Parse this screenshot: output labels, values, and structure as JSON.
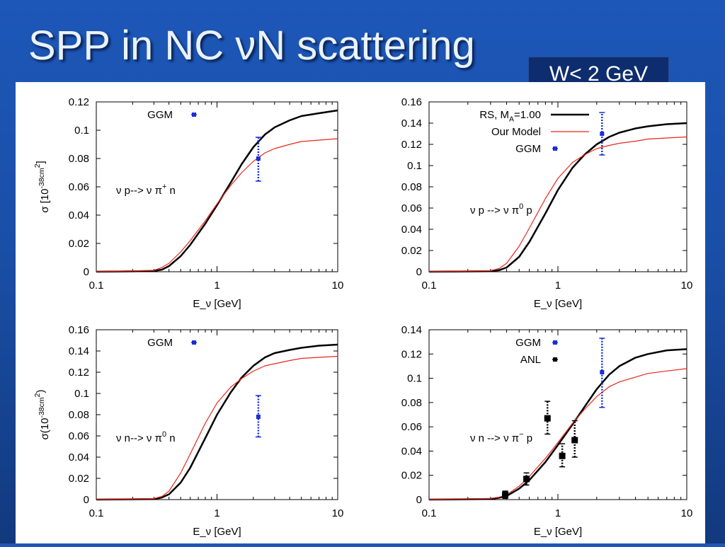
{
  "slide": {
    "title": "SPP in NC νN scattering",
    "badge": "W< 2 GeV"
  },
  "chart_data": [
    {
      "type": "line",
      "xscale": "log",
      "xlim": [
        0.1,
        10
      ],
      "ylim": [
        0,
        0.12
      ],
      "yticks": [
        "0",
        "0.02",
        "0.04",
        "0.06",
        "0.08",
        "0.1",
        "0.12"
      ],
      "xticks": [
        "0.1",
        "1",
        "10"
      ],
      "xlabel": "E_ν [GeV]",
      "ylabel": "σ [10^-38cm^2]",
      "annotation": "ν p--> ν π+ n",
      "legend": [
        {
          "label": "GGM",
          "style": "blue-point"
        }
      ],
      "series": [
        {
          "style": "black-thick",
          "x": [
            0.1,
            0.3,
            0.35,
            0.4,
            0.5,
            0.6,
            0.8,
            1.0,
            1.3,
            1.6,
            2.0,
            2.5,
            3.0,
            4.0,
            5.0,
            7.0,
            10.0
          ],
          "y": [
            0,
            0.0005,
            0.0015,
            0.004,
            0.011,
            0.019,
            0.034,
            0.047,
            0.063,
            0.076,
            0.088,
            0.097,
            0.102,
            0.107,
            0.11,
            0.112,
            0.114
          ]
        },
        {
          "style": "red-thin",
          "x": [
            0.1,
            0.3,
            0.35,
            0.4,
            0.5,
            0.6,
            0.8,
            1.0,
            1.3,
            1.6,
            2.0,
            2.5,
            3.0,
            4.0,
            5.0,
            7.0,
            10.0
          ],
          "y": [
            0,
            0.001,
            0.003,
            0.006,
            0.014,
            0.022,
            0.036,
            0.048,
            0.061,
            0.07,
            0.078,
            0.084,
            0.087,
            0.09,
            0.092,
            0.093,
            0.094
          ]
        }
      ],
      "points": [
        {
          "x": 2.2,
          "y": 0.08,
          "ylo": 0.064,
          "yhi": 0.095,
          "style": "blue"
        }
      ]
    },
    {
      "type": "line",
      "xscale": "log",
      "xlim": [
        0.1,
        10
      ],
      "ylim": [
        0,
        0.16
      ],
      "yticks": [
        "0",
        "0.02",
        "0.04",
        "0.06",
        "0.08",
        "0.1",
        "0.12",
        "0.14",
        "0.16"
      ],
      "xticks": [
        "0.1",
        "1",
        "10"
      ],
      "xlabel": "E_ν [GeV]",
      "ylabel": "",
      "annotation": "ν p --> ν π0 p",
      "legend": [
        {
          "label": "RS, M_A=1.00",
          "style": "black-thick"
        },
        {
          "label": "Our Model",
          "style": "red-thin"
        },
        {
          "label": "GGM",
          "style": "blue-point"
        }
      ],
      "series": [
        {
          "style": "black-thick",
          "x": [
            0.1,
            0.3,
            0.35,
            0.4,
            0.5,
            0.6,
            0.8,
            1.0,
            1.3,
            1.6,
            2.0,
            2.5,
            3.0,
            4.0,
            5.0,
            7.0,
            10.0
          ],
          "y": [
            0,
            0.0005,
            0.0015,
            0.004,
            0.014,
            0.028,
            0.055,
            0.077,
            0.098,
            0.11,
            0.12,
            0.127,
            0.131,
            0.135,
            0.137,
            0.139,
            0.14
          ]
        },
        {
          "style": "red-thin",
          "x": [
            0.1,
            0.3,
            0.35,
            0.4,
            0.5,
            0.6,
            0.8,
            1.0,
            1.3,
            1.6,
            2.0,
            2.5,
            3.0,
            4.0,
            5.0,
            7.0,
            10.0
          ],
          "y": [
            0,
            0.001,
            0.003,
            0.008,
            0.024,
            0.041,
            0.069,
            0.088,
            0.103,
            0.11,
            0.116,
            0.119,
            0.121,
            0.123,
            0.125,
            0.126,
            0.127
          ]
        }
      ],
      "points": [
        {
          "x": 2.2,
          "y": 0.13,
          "ylo": 0.11,
          "yhi": 0.15,
          "style": "blue"
        }
      ]
    },
    {
      "type": "line",
      "xscale": "log",
      "xlim": [
        0.1,
        10
      ],
      "ylim": [
        0,
        0.16
      ],
      "yticks": [
        "0",
        "0.02",
        "0.04",
        "0.06",
        "0.08",
        "0.1",
        "0.12",
        "0.14",
        "0.16"
      ],
      "xticks": [
        "0.1",
        "1",
        "10"
      ],
      "xlabel": "E_ν [GeV]",
      "ylabel": "σ(10^-38cm^2)",
      "annotation": "ν n--> ν π0 n",
      "legend": [
        {
          "label": "GGM",
          "style": "blue-point"
        }
      ],
      "series": [
        {
          "style": "black-thick",
          "x": [
            0.1,
            0.3,
            0.35,
            0.4,
            0.5,
            0.6,
            0.8,
            1.0,
            1.3,
            1.6,
            2.0,
            2.5,
            3.0,
            4.0,
            5.0,
            7.0,
            10.0
          ],
          "y": [
            0,
            0.0005,
            0.002,
            0.005,
            0.016,
            0.03,
            0.058,
            0.08,
            0.101,
            0.115,
            0.126,
            0.134,
            0.138,
            0.141,
            0.143,
            0.145,
            0.146
          ]
        },
        {
          "style": "red-thin",
          "x": [
            0.1,
            0.3,
            0.35,
            0.4,
            0.5,
            0.6,
            0.8,
            1.0,
            1.3,
            1.6,
            2.0,
            2.5,
            3.0,
            4.0,
            5.0,
            7.0,
            10.0
          ],
          "y": [
            0,
            0.001,
            0.003,
            0.008,
            0.025,
            0.043,
            0.072,
            0.091,
            0.106,
            0.114,
            0.121,
            0.126,
            0.128,
            0.131,
            0.133,
            0.134,
            0.135
          ]
        }
      ],
      "points": [
        {
          "x": 2.2,
          "y": 0.078,
          "ylo": 0.059,
          "yhi": 0.098,
          "style": "blue"
        }
      ]
    },
    {
      "type": "line",
      "xscale": "log",
      "xlim": [
        0.1,
        10
      ],
      "ylim": [
        0,
        0.14
      ],
      "yticks": [
        "0",
        "0.02",
        "0.04",
        "0.06",
        "0.08",
        "0.1",
        "0.12",
        "0.14"
      ],
      "xticks": [
        "0.1",
        "1",
        "10"
      ],
      "xlabel": "E_ν [GeV]",
      "ylabel": "",
      "annotation": "ν n --> ν π− p",
      "legend": [
        {
          "label": "GGM",
          "style": "blue-point"
        },
        {
          "label": "ANL",
          "style": "black-point"
        }
      ],
      "series": [
        {
          "style": "black-thick",
          "x": [
            0.1,
            0.3,
            0.35,
            0.4,
            0.5,
            0.6,
            0.8,
            1.0,
            1.3,
            1.6,
            2.0,
            2.5,
            3.0,
            4.0,
            5.0,
            7.0,
            10.0
          ],
          "y": [
            0,
            0.0005,
            0.0015,
            0.003,
            0.009,
            0.016,
            0.031,
            0.045,
            0.062,
            0.076,
            0.091,
            0.103,
            0.11,
            0.117,
            0.12,
            0.123,
            0.124
          ]
        },
        {
          "style": "red-thin",
          "x": [
            0.1,
            0.3,
            0.35,
            0.4,
            0.5,
            0.6,
            0.8,
            1.0,
            1.3,
            1.6,
            2.0,
            2.5,
            3.0,
            4.0,
            5.0,
            7.0,
            10.0
          ],
          "y": [
            0,
            0.001,
            0.002,
            0.004,
            0.011,
            0.019,
            0.034,
            0.047,
            0.063,
            0.074,
            0.085,
            0.093,
            0.097,
            0.101,
            0.104,
            0.106,
            0.108
          ]
        }
      ],
      "points": [
        {
          "x": 2.2,
          "y": 0.105,
          "ylo": 0.076,
          "yhi": 0.133,
          "style": "blue"
        },
        {
          "x": 0.39,
          "y": 0.004,
          "ylo": 0.001,
          "yhi": 0.007,
          "style": "black"
        },
        {
          "x": 0.57,
          "y": 0.017,
          "ylo": 0.012,
          "yhi": 0.022,
          "style": "black"
        },
        {
          "x": 0.83,
          "y": 0.067,
          "ylo": 0.054,
          "yhi": 0.081,
          "style": "black"
        },
        {
          "x": 1.08,
          "y": 0.036,
          "ylo": 0.027,
          "yhi": 0.046,
          "style": "black"
        },
        {
          "x": 1.35,
          "y": 0.049,
          "ylo": 0.035,
          "yhi": 0.065,
          "style": "black"
        }
      ]
    }
  ]
}
